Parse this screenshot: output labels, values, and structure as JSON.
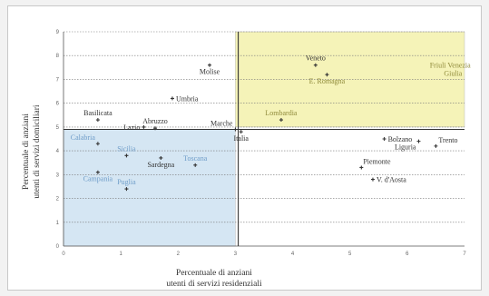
{
  "chart_data": {
    "type": "scatter",
    "xlabel_lines": [
      "Percentuale di anziani",
      "utenti di servizi residenziali"
    ],
    "ylabel_lines": [
      "Percentuale di anziani",
      "utenti di servizi domiciliari"
    ],
    "xlim": [
      0,
      7
    ],
    "ylim": [
      0,
      9
    ],
    "xticks": [
      0,
      1,
      2,
      3,
      4,
      5,
      6,
      7
    ],
    "yticks": [
      0,
      1,
      2,
      3,
      4,
      5,
      6,
      7,
      8,
      9
    ],
    "grid": "horizontal",
    "regions": [
      {
        "x0": 3.0,
        "x1": 7.0,
        "y0": 5.0,
        "y1": 9.0,
        "color": "#f5f3b8"
      },
      {
        "x0": 0.0,
        "x1": 3.0,
        "y0": 0.0,
        "y1": 4.9,
        "color": "#d5e6f3"
      }
    ],
    "colors": {
      "dark_label": "#333333",
      "blue_label": "#6f9dc9",
      "olive_label": "#8f8a3a",
      "marker": "#333333",
      "reference_line": "#333333"
    },
    "reference_lines": {
      "x": 3.05,
      "y": 4.9
    },
    "points": [
      {
        "label": "Molise",
        "x": 2.55,
        "y": 7.6,
        "label_pos": "below",
        "label_color": "dark"
      },
      {
        "label": "Umbria",
        "x": 1.9,
        "y": 6.2,
        "label_pos": "right",
        "label_color": "dark"
      },
      {
        "label": "Basilicata",
        "x": 0.6,
        "y": 5.3,
        "label_pos": "above",
        "label_color": "dark"
      },
      {
        "label": "Lazio",
        "x": 1.4,
        "y": 5.0,
        "label_pos": "left",
        "label_color": "dark"
      },
      {
        "label": "Abruzzo",
        "x": 1.6,
        "y": 4.95,
        "label_pos": "above",
        "label_color": "dark"
      },
      {
        "label": "Marche",
        "x": 3.0,
        "y": 4.9,
        "label_pos": "upper-left",
        "label_color": "dark"
      },
      {
        "label": "Italia",
        "x": 3.1,
        "y": 4.8,
        "label_pos": "below",
        "label_color": "dark"
      },
      {
        "label": "Veneto",
        "x": 4.4,
        "y": 7.6,
        "label_pos": "above",
        "label_color": "dark"
      },
      {
        "label": "E. Romagna",
        "x": 4.6,
        "y": 7.2,
        "label_pos": "below",
        "label_color": "olive"
      },
      {
        "label": "Lombardia",
        "x": 3.8,
        "y": 5.3,
        "label_pos": "above",
        "label_color": "olive"
      },
      {
        "label": "Calabria",
        "x": 0.6,
        "y": 4.3,
        "label_pos": "upper-left",
        "label_color": "blue"
      },
      {
        "label": "Sicilia",
        "x": 1.1,
        "y": 3.8,
        "label_pos": "above",
        "label_color": "blue"
      },
      {
        "label": "Toscana",
        "x": 2.3,
        "y": 3.4,
        "label_pos": "above",
        "label_color": "blue"
      },
      {
        "label": "Sardegna",
        "x": 1.7,
        "y": 3.7,
        "label_pos": "below",
        "label_color": "dark"
      },
      {
        "label": "Campania",
        "x": 0.6,
        "y": 3.1,
        "label_pos": "below",
        "label_color": "blue"
      },
      {
        "label": "Puglia",
        "x": 1.1,
        "y": 2.4,
        "label_pos": "above",
        "label_color": "blue"
      },
      {
        "label": "Liguria",
        "x": 6.2,
        "y": 4.4,
        "label_pos": "below-left",
        "label_color": "dark"
      },
      {
        "label": "Bolzano",
        "x": 5.6,
        "y": 4.5,
        "label_pos": "right",
        "label_color": "dark"
      },
      {
        "label": "Trento",
        "x": 6.5,
        "y": 4.2,
        "label_pos": "upper-right",
        "label_color": "dark"
      },
      {
        "label": "Piemonte",
        "x": 5.2,
        "y": 3.3,
        "label_pos": "above-right",
        "label_color": "dark"
      },
      {
        "label": "V. d'Aosta",
        "x": 5.4,
        "y": 2.8,
        "label_pos": "right",
        "label_color": "dark"
      }
    ],
    "free_labels": [
      {
        "text": "Friuli Venezia",
        "x": 6.75,
        "y": 7.5,
        "color": "olive"
      },
      {
        "text": "Giulia",
        "x": 6.8,
        "y": 7.15,
        "color": "olive"
      }
    ]
  }
}
